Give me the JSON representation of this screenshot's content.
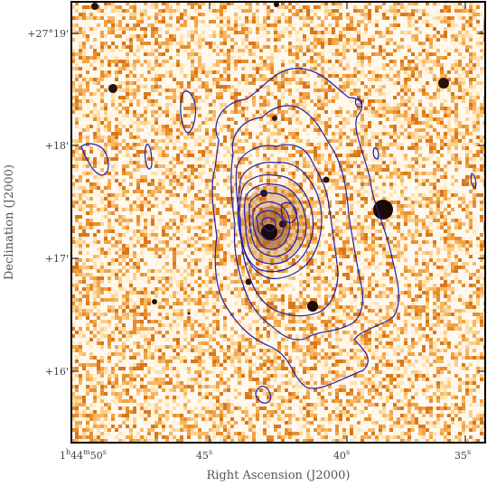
{
  "image": {
    "kind": "astronomical optical image with overlaid contours",
    "colormap": "orange-white heat",
    "contour_color": "#1f1fa8",
    "frame_color": "#000000"
  },
  "axes": {
    "x": {
      "title": "Right Ascension (J2000)",
      "ticks": [
        {
          "value": "1h44m50s",
          "text_main": "1",
          "sup1": "h",
          "mid": "44",
          "sup2": "m",
          "end": "50",
          "sup3": "s"
        },
        {
          "value": "45s",
          "text_main": "45",
          "sup": "s"
        },
        {
          "value": "40s",
          "text_main": "40",
          "sup": "s"
        },
        {
          "value": "35s",
          "text_main": "35",
          "sup": "s"
        }
      ]
    },
    "y": {
      "title": "Declination (J2000)",
      "ticks": [
        {
          "value": "+27°19'",
          "text": "+27°19'"
        },
        {
          "value": "+18'",
          "text": "+18'"
        },
        {
          "value": "+17'",
          "text": "+17'"
        },
        {
          "value": "+16'",
          "text": "+16'"
        }
      ]
    }
  }
}
